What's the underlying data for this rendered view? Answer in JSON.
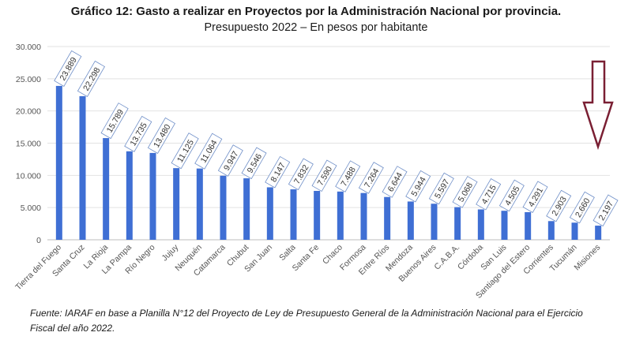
{
  "chart_data": {
    "type": "bar",
    "title": "Gráfico 12: Gasto a realizar en Proyectos por la Administración Nacional por provincia.",
    "subtitle": "Presupuesto 2022 – En pesos por habitante",
    "xlabel": "",
    "ylabel": "",
    "ylim": [
      0,
      30000
    ],
    "yticks": [
      "0",
      "5.000",
      "10.000",
      "15.000",
      "20.000",
      "25.000",
      "30.000"
    ],
    "ytick_values": [
      0,
      5000,
      10000,
      15000,
      20000,
      25000,
      30000
    ],
    "grid": true,
    "categories": [
      "Tierra del Fuego",
      "Santa Cruz",
      "La Rioja",
      "La Pampa",
      "Río Negro",
      "Jujuy",
      "Neuquén",
      "Catamarca",
      "Chubut",
      "San Juan",
      "Salta",
      "Santa Fe",
      "Chaco",
      "Formosa",
      "Entre Ríos",
      "Mendoza",
      "Buenos Aires",
      "C.A.B.A.",
      "Córdoba",
      "San Luis",
      "Santiago del Estero",
      "Corrientes",
      "Tucumán",
      "Misiones"
    ],
    "values": [
      23889,
      22298,
      15789,
      13735,
      13480,
      11125,
      11064,
      9947,
      9546,
      8147,
      7832,
      7590,
      7488,
      7264,
      6644,
      5944,
      5597,
      5068,
      4715,
      4505,
      4291,
      2903,
      2660,
      2197
    ],
    "labels": [
      "23.889",
      "22.298",
      "15.789",
      "13.735",
      "13.480",
      "11.125",
      "11.064",
      "9.947",
      "9.546",
      "8.147",
      "7.832",
      "7.590",
      "7.488",
      "7.264",
      "6.644",
      "5.944",
      "5.597",
      "5.068",
      "4.715",
      "4.505",
      "4.291",
      "2.903",
      "2.660",
      "2.197"
    ],
    "bar_color": "#3f6fd4",
    "label_border_color": "#6f8fc8"
  },
  "annotation": {
    "arrow_color": "#7a1f33"
  },
  "source_text": "Fuente: IARAF en base a Planilla N°12 del Proyecto de Ley de Presupuesto General de la Administración Nacional para el Ejercicio Fiscal del año 2022."
}
